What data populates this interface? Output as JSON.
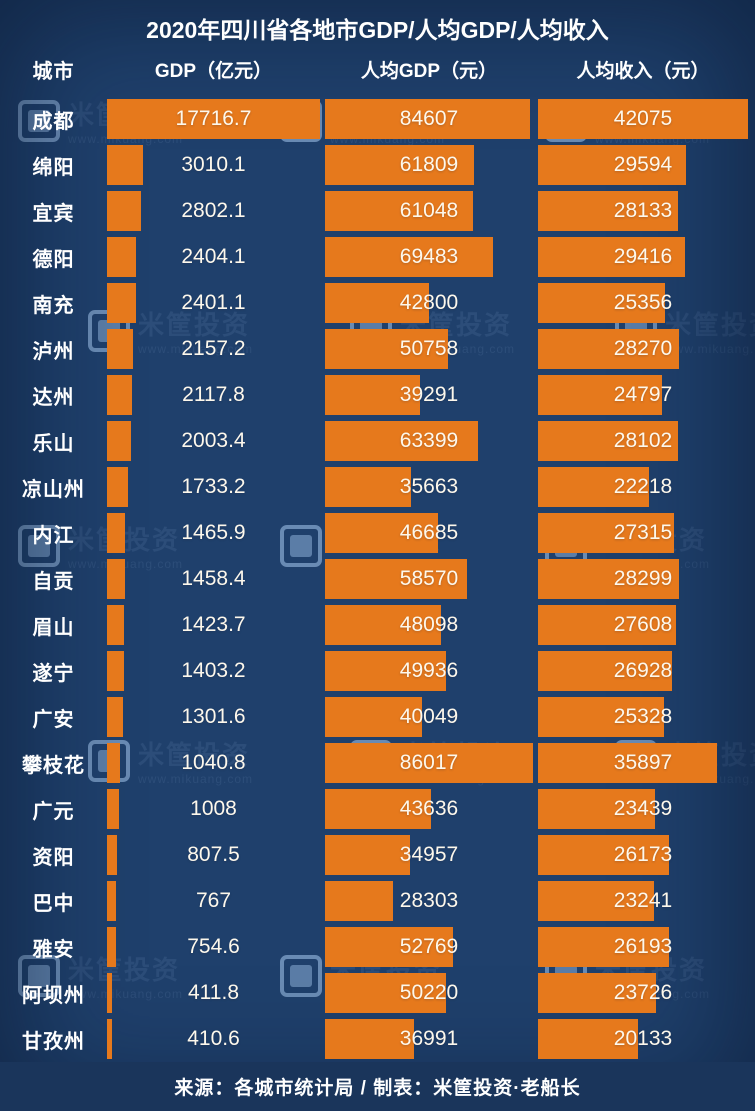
{
  "title": "2020年四川省各地市GDP/人均GDP/人均收入",
  "columns": {
    "city": "城市",
    "gdp": "GDP（亿元）",
    "gdp_per_capita": "人均GDP（元）",
    "income_per_capita": "人均收入（元）"
  },
  "footer": {
    "text": "来源：各城市统计局 / 制表：米筐投资·老船长"
  },
  "watermark": {
    "brand": "米筐投资",
    "url": "www.mikuang.com"
  },
  "colors": {
    "background": "#1F406C",
    "bar": "#E6791C",
    "footer_background": "#1A355B",
    "title_text": "#FFFFFF",
    "value_text": "#FDF8EC"
  },
  "chart_data": {
    "type": "bar",
    "orientation": "horizontal",
    "title": "2020年四川省各地市GDP/人均GDP/人均收入",
    "source": "来源：各城市统计局 / 制表：米筐投资·老船长",
    "categories": [
      "成都",
      "绵阳",
      "宜宾",
      "德阳",
      "南充",
      "泸州",
      "达州",
      "乐山",
      "凉山州",
      "内江",
      "自贡",
      "眉山",
      "遂宁",
      "广安",
      "攀枝花",
      "广元",
      "资阳",
      "巴中",
      "雅安",
      "阿坝州",
      "甘孜州"
    ],
    "series": [
      {
        "name": "GDP（亿元）",
        "axis_max": 17716.7,
        "values": [
          17716.7,
          3010.1,
          2802.1,
          2404.1,
          2401.1,
          2157.2,
          2117.8,
          2003.4,
          1733.2,
          1465.9,
          1458.4,
          1423.7,
          1403.2,
          1301.6,
          1040.8,
          1008,
          807.5,
          767,
          754.6,
          411.8,
          410.6
        ]
      },
      {
        "name": "人均GDP（元）",
        "axis_max": 86017,
        "values": [
          84607,
          61809,
          61048,
          69483,
          42800,
          50758,
          39291,
          63399,
          35663,
          46685,
          58570,
          48098,
          49936,
          40049,
          86017,
          43636,
          34957,
          28303,
          52769,
          50220,
          36991
        ]
      },
      {
        "name": "人均收入（元）",
        "axis_max": 42075,
        "values": [
          42075,
          29594,
          28133,
          29416,
          25356,
          28270,
          24797,
          28102,
          22218,
          27315,
          28299,
          27608,
          26928,
          25328,
          35897,
          23439,
          26173,
          23241,
          26193,
          23726,
          20133
        ]
      }
    ],
    "legend_position": "none",
    "grid": false
  }
}
